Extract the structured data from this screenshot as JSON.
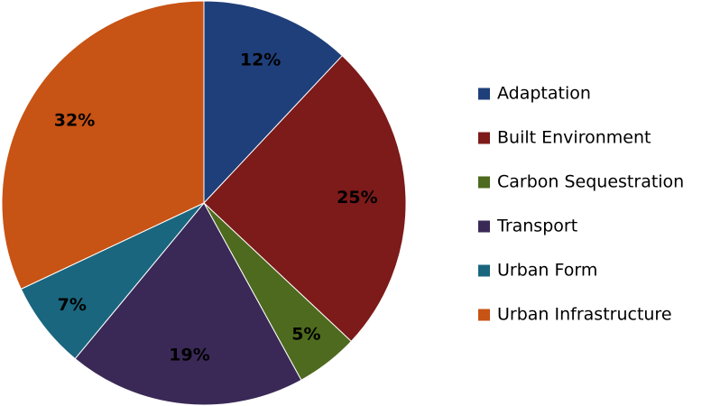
{
  "chart_data": {
    "type": "pie",
    "categories": [
      "Adaptation",
      "Built Environment",
      "Carbon Sequestration",
      "Transport",
      "Urban Form",
      "Urban Infrastructure"
    ],
    "values": [
      12,
      25,
      5,
      19,
      7,
      32
    ],
    "labels": [
      "12%",
      "25%",
      "5%",
      "19%",
      "7%",
      "32%"
    ],
    "colors": [
      "#1f3f7a",
      "#7d1a1a",
      "#4e6a1e",
      "#3a2956",
      "#1a667e",
      "#c75314"
    ],
    "legend_placement": "right"
  }
}
